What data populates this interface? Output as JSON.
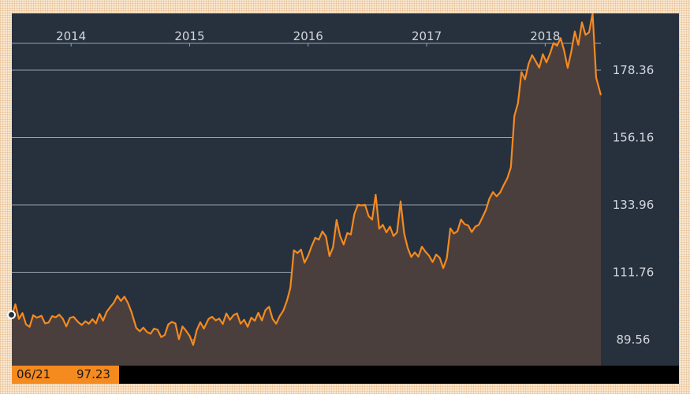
{
  "chart_data": {
    "type": "area",
    "x_ticks": [
      "2014",
      "2015",
      "2016",
      "2017",
      "2018"
    ],
    "y_ticks": [
      "178.36",
      "156.16",
      "133.96",
      "111.76",
      "89.56"
    ],
    "ylim": [
      84.0,
      197.0
    ],
    "xlim": [
      2013.5,
      2018.47
    ],
    "grid": true,
    "colors": {
      "line": "#f58a1f",
      "fill": "#4b3f3d",
      "background": "#27313e",
      "grid": "#9aa2ac"
    },
    "readout": {
      "date": "06/21",
      "value": "97.23"
    },
    "series": [
      {
        "values": [
          [
            2013.5,
            97.2
          ],
          [
            2013.53,
            101.2
          ],
          [
            2013.56,
            96.4
          ],
          [
            2013.59,
            98.3
          ],
          [
            2013.62,
            94.6
          ],
          [
            2013.65,
            93.8
          ],
          [
            2013.68,
            97.6
          ],
          [
            2013.71,
            96.8
          ],
          [
            2013.75,
            97.4
          ],
          [
            2013.78,
            94.9
          ],
          [
            2013.81,
            95.2
          ],
          [
            2013.84,
            97.3
          ],
          [
            2013.87,
            96.9
          ],
          [
            2013.9,
            97.8
          ],
          [
            2013.93,
            96.5
          ],
          [
            2013.96,
            93.9
          ],
          [
            2013.99,
            96.7
          ],
          [
            2014.02,
            97.1
          ],
          [
            2014.06,
            95.3
          ],
          [
            2014.09,
            94.4
          ],
          [
            2014.12,
            95.6
          ],
          [
            2014.15,
            94.8
          ],
          [
            2014.18,
            96.3
          ],
          [
            2014.21,
            94.9
          ],
          [
            2014.24,
            98.1
          ],
          [
            2014.27,
            95.8
          ],
          [
            2014.3,
            98.7
          ],
          [
            2014.33,
            100.3
          ],
          [
            2014.36,
            101.7
          ],
          [
            2014.39,
            104.0
          ],
          [
            2014.42,
            102.3
          ],
          [
            2014.45,
            103.7
          ],
          [
            2014.48,
            101.6
          ],
          [
            2014.51,
            98.6
          ],
          [
            2014.55,
            93.4
          ],
          [
            2014.58,
            92.3
          ],
          [
            2014.61,
            93.5
          ],
          [
            2014.64,
            92.1
          ],
          [
            2014.67,
            91.5
          ],
          [
            2014.7,
            93.2
          ],
          [
            2014.73,
            92.8
          ],
          [
            2014.76,
            90.4
          ],
          [
            2014.79,
            91.1
          ],
          [
            2014.82,
            94.6
          ],
          [
            2014.85,
            95.4
          ],
          [
            2014.88,
            94.9
          ],
          [
            2014.91,
            89.7
          ],
          [
            2014.94,
            93.9
          ],
          [
            2014.97,
            92.5
          ],
          [
            2015.0,
            90.8
          ],
          [
            2015.03,
            87.8
          ],
          [
            2015.06,
            92.7
          ],
          [
            2015.09,
            95.3
          ],
          [
            2015.12,
            93.2
          ],
          [
            2015.16,
            96.4
          ],
          [
            2015.19,
            97.1
          ],
          [
            2015.22,
            95.9
          ],
          [
            2015.25,
            96.5
          ],
          [
            2015.28,
            94.7
          ],
          [
            2015.31,
            98.2
          ],
          [
            2015.34,
            96.1
          ],
          [
            2015.37,
            97.6
          ],
          [
            2015.4,
            98.2
          ],
          [
            2015.43,
            94.8
          ],
          [
            2015.46,
            96.1
          ],
          [
            2015.49,
            93.8
          ],
          [
            2015.52,
            96.8
          ],
          [
            2015.55,
            95.8
          ],
          [
            2015.58,
            98.4
          ],
          [
            2015.61,
            95.9
          ],
          [
            2015.64,
            99.3
          ],
          [
            2015.67,
            100.4
          ],
          [
            2015.7,
            96.4
          ],
          [
            2015.73,
            94.8
          ],
          [
            2015.76,
            97.3
          ],
          [
            2015.79,
            99.1
          ],
          [
            2015.82,
            102.2
          ],
          [
            2015.85,
            106.6
          ],
          [
            2015.88,
            119.0
          ],
          [
            2015.91,
            118.1
          ],
          [
            2015.94,
            119.2
          ],
          [
            2015.97,
            114.9
          ],
          [
            2016.0,
            117.3
          ],
          [
            2016.03,
            120.4
          ],
          [
            2016.06,
            123.1
          ],
          [
            2016.09,
            122.5
          ],
          [
            2016.12,
            125.2
          ],
          [
            2016.15,
            123.6
          ],
          [
            2016.18,
            117.1
          ],
          [
            2016.21,
            120.0
          ],
          [
            2016.24,
            129.0
          ],
          [
            2016.27,
            123.7
          ],
          [
            2016.3,
            120.9
          ],
          [
            2016.33,
            124.7
          ],
          [
            2016.36,
            124.2
          ],
          [
            2016.39,
            131.0
          ],
          [
            2016.42,
            134.0
          ],
          [
            2016.45,
            133.8
          ],
          [
            2016.48,
            134.0
          ],
          [
            2016.51,
            130.3
          ],
          [
            2016.54,
            129.1
          ],
          [
            2016.57,
            137.3
          ],
          [
            2016.6,
            126.1
          ],
          [
            2016.63,
            127.4
          ],
          [
            2016.66,
            124.9
          ],
          [
            2016.69,
            126.8
          ],
          [
            2016.72,
            123.7
          ],
          [
            2016.75,
            124.9
          ],
          [
            2016.78,
            135.1
          ],
          [
            2016.81,
            124.6
          ],
          [
            2016.84,
            119.8
          ],
          [
            2016.87,
            116.8
          ],
          [
            2016.9,
            118.3
          ],
          [
            2016.93,
            116.9
          ],
          [
            2016.96,
            120.2
          ],
          [
            2016.99,
            118.5
          ],
          [
            2017.02,
            117.2
          ],
          [
            2017.05,
            115.1
          ],
          [
            2017.08,
            117.6
          ],
          [
            2017.11,
            116.5
          ],
          [
            2017.14,
            113.1
          ],
          [
            2017.17,
            116.4
          ],
          [
            2017.2,
            126.2
          ],
          [
            2017.23,
            124.5
          ],
          [
            2017.26,
            125.3
          ],
          [
            2017.29,
            129.1
          ],
          [
            2017.32,
            127.6
          ],
          [
            2017.35,
            127.2
          ],
          [
            2017.38,
            125.0
          ],
          [
            2017.41,
            126.8
          ],
          [
            2017.44,
            127.4
          ],
          [
            2017.47,
            129.8
          ],
          [
            2017.5,
            132.3
          ],
          [
            2017.53,
            136.1
          ],
          [
            2017.56,
            138.2
          ],
          [
            2017.59,
            136.8
          ],
          [
            2017.62,
            138.0
          ],
          [
            2017.65,
            140.5
          ],
          [
            2017.68,
            142.7
          ],
          [
            2017.71,
            146.3
          ],
          [
            2017.74,
            163.3
          ],
          [
            2017.77,
            167.4
          ],
          [
            2017.8,
            177.7
          ],
          [
            2017.83,
            175.3
          ],
          [
            2017.86,
            180.4
          ],
          [
            2017.89,
            183.3
          ],
          [
            2017.92,
            181.3
          ],
          [
            2017.95,
            179.2
          ],
          [
            2017.98,
            183.6
          ],
          [
            2018.01,
            180.9
          ],
          [
            2018.04,
            183.7
          ],
          [
            2018.07,
            187.3
          ],
          [
            2018.1,
            186.4
          ],
          [
            2018.13,
            188.9
          ],
          [
            2018.16,
            184.8
          ],
          [
            2018.19,
            179.1
          ],
          [
            2018.22,
            184.4
          ],
          [
            2018.25,
            191.1
          ],
          [
            2018.28,
            186.7
          ],
          [
            2018.31,
            194.1
          ],
          [
            2018.34,
            190.0
          ],
          [
            2018.37,
            190.8
          ],
          [
            2018.4,
            197.0
          ],
          [
            2018.43,
            175.9
          ],
          [
            2018.47,
            170.1
          ]
        ]
      }
    ]
  }
}
